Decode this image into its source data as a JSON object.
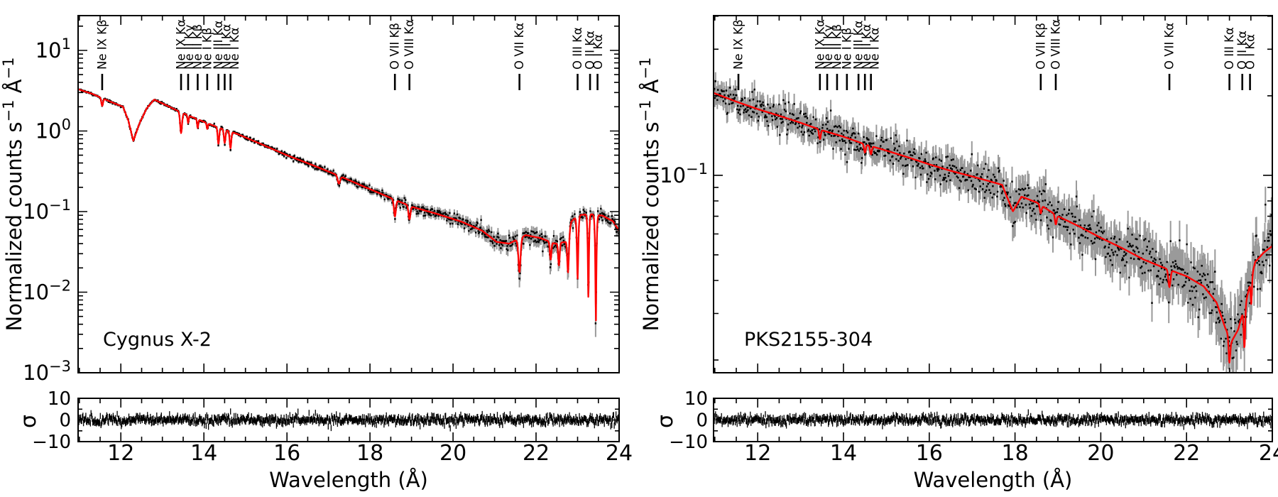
{
  "figure": {
    "background": "#ffffff"
  },
  "colors": {
    "model_line": "#ff0000",
    "data_points": "#000000",
    "error_bars": "#9a9a9a",
    "axis": "#000000",
    "zero_line": "#999999"
  },
  "chart_data": [
    {
      "type": "line",
      "title": "Cygnus X-2",
      "xlabel": "Wavelength (Å)",
      "ylabel_parts": [
        {
          "t": "Normalized counts s"
        },
        {
          "sup": "-1"
        },
        {
          "t": " Å"
        },
        {
          "sup": "-1"
        }
      ],
      "xlim": [
        10.97,
        24.0
      ],
      "ylim_log": [
        0.001,
        27.0
      ],
      "x_major_ticks": [
        12,
        14,
        16,
        18,
        20,
        22,
        24
      ],
      "x_minor_step": 0.5,
      "y_tick_exponents": [
        1,
        0,
        -1,
        -2,
        -3
      ],
      "grid": false,
      "series": [
        {
          "name": "best-fit model",
          "color": "#ff0000",
          "continuum_points": [
            [
              10.97,
              3.3
            ],
            [
              11.3,
              2.9
            ],
            [
              11.8,
              2.25
            ],
            [
              12.05,
              2.0
            ],
            [
              12.18,
              1.35
            ],
            [
              12.3,
              0.75
            ],
            [
              12.45,
              1.25
            ],
            [
              12.62,
              1.9
            ],
            [
              12.8,
              2.45
            ],
            [
              13.0,
              2.2
            ],
            [
              13.3,
              1.85
            ],
            [
              13.7,
              1.5
            ],
            [
              14.2,
              1.18
            ],
            [
              14.8,
              0.92
            ],
            [
              15.4,
              0.68
            ],
            [
              16.0,
              0.5
            ],
            [
              16.6,
              0.38
            ],
            [
              17.2,
              0.285
            ],
            [
              17.8,
              0.21
            ],
            [
              18.4,
              0.155
            ],
            [
              19.0,
              0.115
            ],
            [
              19.6,
              0.094
            ],
            [
              20.2,
              0.075
            ],
            [
              20.7,
              0.058
            ],
            [
              21.05,
              0.042
            ],
            [
              21.35,
              0.04
            ],
            [
              21.75,
              0.051
            ],
            [
              22.1,
              0.047
            ],
            [
              22.45,
              0.04
            ],
            [
              22.7,
              0.042
            ],
            [
              22.85,
              0.075
            ],
            [
              23.0,
              0.09
            ],
            [
              23.3,
              0.093
            ],
            [
              23.6,
              0.089
            ],
            [
              23.85,
              0.076
            ],
            [
              24.0,
              0.058
            ]
          ],
          "absorption_dips": [
            {
              "center": 11.55,
              "width": 0.02,
              "depth": 0.8
            },
            {
              "center": 13.45,
              "width": 0.025,
              "depth": 0.55
            },
            {
              "center": 13.62,
              "width": 0.015,
              "depth": 0.8
            },
            {
              "center": 13.85,
              "width": 0.015,
              "depth": 0.78
            },
            {
              "center": 14.08,
              "width": 0.015,
              "depth": 0.85
            },
            {
              "center": 14.35,
              "width": 0.02,
              "depth": 0.62
            },
            {
              "center": 14.5,
              "width": 0.02,
              "depth": 0.68
            },
            {
              "center": 14.64,
              "width": 0.02,
              "depth": 0.62
            },
            {
              "center": 17.25,
              "width": 0.03,
              "depth": 0.8
            },
            {
              "center": 18.6,
              "width": 0.025,
              "depth": 0.62
            },
            {
              "center": 18.95,
              "width": 0.025,
              "depth": 0.68
            },
            {
              "center": 21.6,
              "width": 0.03,
              "depth": 0.38
            },
            {
              "center": 22.35,
              "width": 0.02,
              "depth": 0.6
            },
            {
              "center": 22.55,
              "width": 0.02,
              "depth": 0.52
            },
            {
              "center": 22.77,
              "width": 0.025,
              "depth": 0.32
            },
            {
              "center": 23.0,
              "width": 0.022,
              "depth": 0.16
            },
            {
              "center": 23.26,
              "width": 0.02,
              "depth": 0.09
            },
            {
              "center": 23.44,
              "width": 0.022,
              "depth": 0.045
            }
          ]
        },
        {
          "name": "observed spectrum",
          "style": "points-with-errorbars",
          "relative_scatter_base": 0.07,
          "scatter_ref_value": 0.1,
          "sample_step": 0.014,
          "seed": 20
        }
      ],
      "annotations": [
        {
          "label": "Ne IX Kβ",
          "wavelength": 11.55
        },
        {
          "label": "Ne IX Kα",
          "wavelength": 13.45
        },
        {
          "label": "Ne II Kγ",
          "wavelength": 13.62
        },
        {
          "label": "Ne II Kβ",
          "wavelength": 13.85
        },
        {
          "label": "Ne I Kβ",
          "wavelength": 14.08
        },
        {
          "label": "Ne III Kα",
          "wavelength": 14.35
        },
        {
          "label": "Ne II Kα",
          "wavelength": 14.5
        },
        {
          "label": "Ne I Kα",
          "wavelength": 14.64
        },
        {
          "label": "O VII Kβ",
          "wavelength": 18.6
        },
        {
          "label": "O VIII Kα",
          "wavelength": 18.95
        },
        {
          "label": "O VII Kα",
          "wavelength": 21.6
        },
        {
          "label": "O III Kα",
          "wavelength": 23.0
        },
        {
          "label": "O II Kα",
          "wavelength": 23.3
        },
        {
          "label": "O I Kα",
          "wavelength": 23.48
        }
      ],
      "residuals": {
        "ylabel": "σ",
        "ylim": [
          -10,
          10
        ],
        "ticks": [
          10,
          0,
          -10
        ],
        "zero_line": "dashed",
        "noise_sigma": 1.1,
        "seed": 77
      }
    },
    {
      "type": "line",
      "title": "PKS2155-304",
      "xlabel": "Wavelength (Å)",
      "ylabel_parts": [
        {
          "t": "Normalized counts s"
        },
        {
          "sup": "-1"
        },
        {
          "t": " Å"
        },
        {
          "sup": "-1"
        }
      ],
      "xlim": [
        10.97,
        24.0
      ],
      "ylim_log": [
        0.0179,
        0.402
      ],
      "x_major_ticks": [
        12,
        14,
        16,
        18,
        20,
        22,
        24
      ],
      "x_minor_step": 0.5,
      "y_tick_exponents": [
        -1
      ],
      "grid": false,
      "series": [
        {
          "name": "best-fit model",
          "color": "#ff0000",
          "continuum_points": [
            [
              10.97,
              0.205
            ],
            [
              11.5,
              0.19
            ],
            [
              12.0,
              0.178
            ],
            [
              12.5,
              0.168
            ],
            [
              13.0,
              0.158
            ],
            [
              13.5,
              0.148
            ],
            [
              14.0,
              0.14
            ],
            [
              14.5,
              0.131
            ],
            [
              15.0,
              0.124
            ],
            [
              15.5,
              0.117
            ],
            [
              16.0,
              0.11
            ],
            [
              16.5,
              0.104
            ],
            [
              17.0,
              0.099
            ],
            [
              17.4,
              0.095
            ],
            [
              17.7,
              0.092
            ],
            [
              17.95,
              0.073
            ],
            [
              18.15,
              0.083
            ],
            [
              18.5,
              0.079
            ],
            [
              19.0,
              0.07
            ],
            [
              19.5,
              0.064
            ],
            [
              20.0,
              0.058
            ],
            [
              20.5,
              0.053
            ],
            [
              21.0,
              0.048
            ],
            [
              21.5,
              0.0445
            ],
            [
              22.0,
              0.0415
            ],
            [
              22.4,
              0.038
            ],
            [
              22.7,
              0.033
            ],
            [
              22.9,
              0.0265
            ],
            [
              23.05,
              0.0235
            ],
            [
              23.2,
              0.026
            ],
            [
              23.4,
              0.034
            ],
            [
              23.6,
              0.047
            ],
            [
              23.8,
              0.051
            ],
            [
              24.0,
              0.054
            ]
          ],
          "absorption_dips": [
            {
              "center": 13.45,
              "width": 0.02,
              "depth": 0.92
            },
            {
              "center": 14.5,
              "width": 0.02,
              "depth": 0.93
            },
            {
              "center": 14.64,
              "width": 0.02,
              "depth": 0.93
            },
            {
              "center": 18.6,
              "width": 0.02,
              "depth": 0.93
            },
            {
              "center": 18.95,
              "width": 0.02,
              "depth": 0.92
            },
            {
              "center": 21.6,
              "width": 0.025,
              "depth": 0.86
            },
            {
              "center": 23.0,
              "width": 0.02,
              "depth": 0.8
            },
            {
              "center": 23.35,
              "width": 0.018,
              "depth": 0.7
            },
            {
              "center": 23.51,
              "width": 0.015,
              "depth": 0.8
            }
          ]
        },
        {
          "name": "observed spectrum",
          "style": "points-with-errorbars",
          "relative_scatter_base": 0.075,
          "scatter_ref_value": 0.1,
          "sample_step": 0.014,
          "seed": 31
        }
      ],
      "annotations": [
        {
          "label": "Ne IX Kβ",
          "wavelength": 11.55
        },
        {
          "label": "Ne IX Kα",
          "wavelength": 13.45
        },
        {
          "label": "Ne II Kγ",
          "wavelength": 13.62
        },
        {
          "label": "Ne II Kβ",
          "wavelength": 13.85
        },
        {
          "label": "Ne I Kβ",
          "wavelength": 14.08
        },
        {
          "label": "Ne III Kα",
          "wavelength": 14.35
        },
        {
          "label": "Ne II Kα",
          "wavelength": 14.5
        },
        {
          "label": "Ne I Kα",
          "wavelength": 14.64
        },
        {
          "label": "O VII Kβ",
          "wavelength": 18.6
        },
        {
          "label": "O VIII Kα",
          "wavelength": 18.95
        },
        {
          "label": "O VII Kα",
          "wavelength": 21.6
        },
        {
          "label": "O III Kα",
          "wavelength": 23.0
        },
        {
          "label": "O II Kα",
          "wavelength": 23.3
        },
        {
          "label": "O I Kα",
          "wavelength": 23.48
        }
      ],
      "residuals": {
        "ylabel": "σ",
        "ylim": [
          -10,
          10
        ],
        "ticks": [
          10,
          0,
          -10
        ],
        "zero_line": "dashed",
        "noise_sigma": 1.1,
        "seed": 99
      }
    }
  ]
}
